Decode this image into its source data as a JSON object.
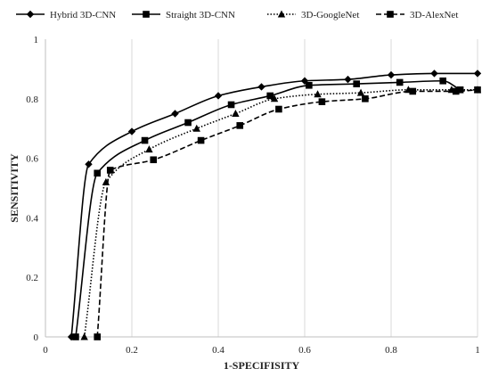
{
  "chart_data": {
    "type": "line",
    "title": "",
    "xlabel": "1-SPECIFISITY",
    "ylabel": "SENSITIVITY",
    "xlim": [
      0,
      1
    ],
    "ylim": [
      0,
      1
    ],
    "x_ticks": [
      "0",
      "0.2",
      "0.4",
      "0.6",
      "0.8",
      "1"
    ],
    "y_ticks": [
      "0",
      "0.2",
      "0.4",
      "0.6",
      "0.8",
      "1"
    ],
    "grid": "vertical",
    "legend_position": "top",
    "series": [
      {
        "name": "Hybrid 3D-CNN",
        "marker": "diamond",
        "line_style": "solid",
        "color": "#000000",
        "x": [
          0.06,
          0.1,
          0.2,
          0.3,
          0.4,
          0.5,
          0.6,
          0.7,
          0.8,
          0.9,
          1.0
        ],
        "y": [
          0.0,
          0.58,
          0.69,
          0.75,
          0.81,
          0.84,
          0.86,
          0.865,
          0.88,
          0.885,
          0.885
        ]
      },
      {
        "name": "Straight 3D-CNN",
        "marker": "square",
        "line_style": "solid",
        "color": "#000000",
        "x": [
          0.07,
          0.12,
          0.23,
          0.33,
          0.43,
          0.52,
          0.61,
          0.72,
          0.82,
          0.92,
          0.96
        ],
        "y": [
          0.0,
          0.55,
          0.66,
          0.72,
          0.78,
          0.81,
          0.845,
          0.85,
          0.855,
          0.86,
          0.83
        ]
      },
      {
        "name": "3D-GoogleNet",
        "marker": "triangle",
        "line_style": "dotted",
        "color": "#000000",
        "x": [
          0.09,
          0.14,
          0.24,
          0.35,
          0.44,
          0.53,
          0.63,
          0.73,
          0.84,
          0.94,
          1.0
        ],
        "y": [
          0.0,
          0.52,
          0.63,
          0.7,
          0.75,
          0.8,
          0.815,
          0.82,
          0.83,
          0.83,
          0.83
        ]
      },
      {
        "name": "3D-AlexNet",
        "marker": "square",
        "line_style": "dashed",
        "color": "#000000",
        "x": [
          0.12,
          0.15,
          0.25,
          0.36,
          0.45,
          0.54,
          0.64,
          0.74,
          0.85,
          0.95,
          1.0
        ],
        "y": [
          0.0,
          0.56,
          0.595,
          0.66,
          0.71,
          0.765,
          0.79,
          0.8,
          0.825,
          0.825,
          0.83
        ]
      }
    ]
  }
}
